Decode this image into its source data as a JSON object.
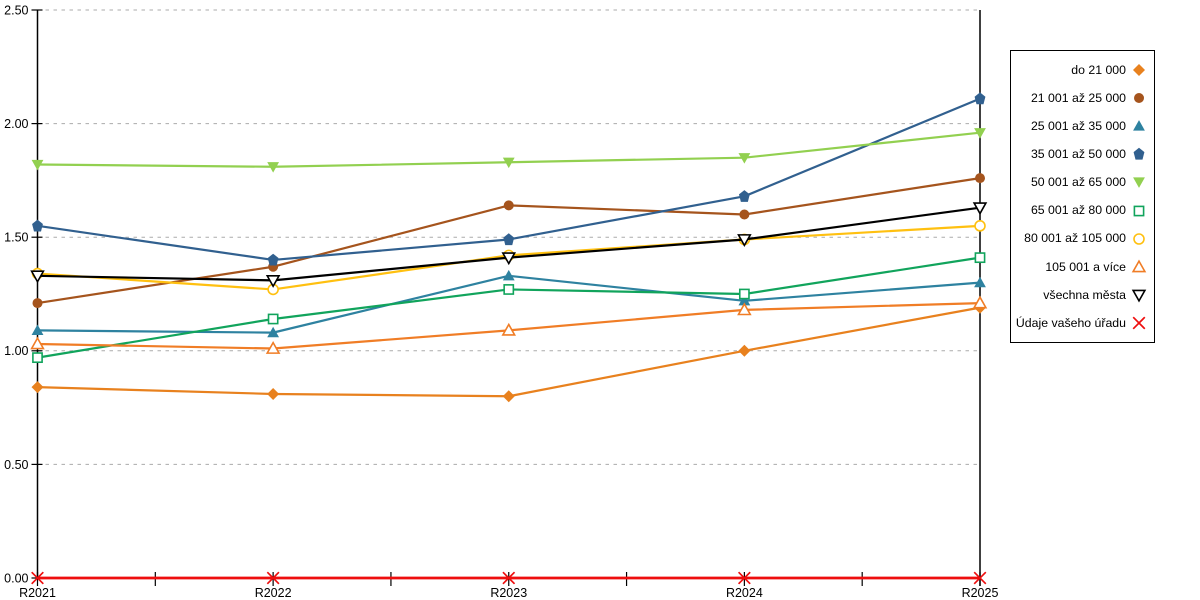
{
  "chart_data": {
    "type": "line",
    "title": "",
    "xlabel": "",
    "ylabel": "",
    "categories": [
      "R2021",
      "R2022",
      "R2023",
      "R2024",
      "R2025"
    ],
    "ylim": [
      0,
      2.5
    ],
    "yticks": [
      {
        "value": 0.0,
        "label": "0.00"
      },
      {
        "value": 0.5,
        "label": "0.50"
      },
      {
        "value": 1.0,
        "label": "1.00"
      },
      {
        "value": 1.5,
        "label": "1.50"
      },
      {
        "value": 2.0,
        "label": "2.00"
      },
      {
        "value": 2.5,
        "label": "2.50"
      }
    ],
    "grid": "horizontal-dashed",
    "gridline_color": "#ABABAB",
    "axis_color": "#000000",
    "legend_position": "right-outside",
    "highlight_category": "R2025",
    "series": [
      {
        "name": "do 21 000",
        "marker": "diamond",
        "style": "filled",
        "color": "#E8811E",
        "values": [
          0.84,
          0.81,
          0.8,
          1.0,
          1.19
        ]
      },
      {
        "name": "21 001 až 25 000",
        "marker": "circle",
        "style": "filled",
        "color": "#A5541D",
        "values": [
          1.21,
          1.37,
          1.64,
          1.6,
          1.76
        ]
      },
      {
        "name": "25 001 až 35 000",
        "marker": "triangle-up",
        "style": "filled",
        "color": "#2E82A0",
        "values": [
          1.09,
          1.08,
          1.33,
          1.22,
          1.3
        ]
      },
      {
        "name": "35 001 až 50 000",
        "marker": "pentagon",
        "style": "filled",
        "color": "#31608F",
        "values": [
          1.55,
          1.4,
          1.49,
          1.68,
          2.11
        ]
      },
      {
        "name": "50 001 až 65 000",
        "marker": "triangle-down",
        "style": "filled",
        "color": "#92D050",
        "values": [
          1.82,
          1.81,
          1.83,
          1.85,
          1.96
        ]
      },
      {
        "name": "65 001 až 80 000",
        "marker": "square",
        "style": "open",
        "color": "#11A45C",
        "values": [
          0.97,
          1.14,
          1.27,
          1.25,
          1.41
        ]
      },
      {
        "name": "80 001 až 105 000",
        "marker": "circle",
        "style": "open",
        "color": "#FFC010",
        "values": [
          1.34,
          1.27,
          1.42,
          1.49,
          1.55
        ]
      },
      {
        "name": "105 001 a více",
        "marker": "triangle-up",
        "style": "open",
        "color": "#F07D26",
        "values": [
          1.03,
          1.01,
          1.09,
          1.18,
          1.21
        ]
      },
      {
        "name": "všechna města",
        "marker": "triangle-down",
        "style": "open",
        "color": "#000000",
        "values": [
          1.33,
          1.31,
          1.41,
          1.49,
          1.63
        ]
      },
      {
        "name": "Údaje vašeho úřadu",
        "marker": "x",
        "style": "line",
        "color": "#EE0E0E",
        "values": [
          0,
          0,
          0,
          0,
          0
        ],
        "line_width": 2.8
      }
    ]
  }
}
